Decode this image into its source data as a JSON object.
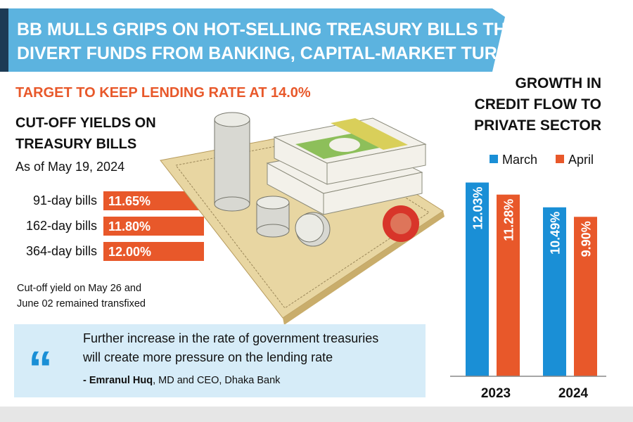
{
  "header": {
    "title_lines": [
      "BB MULLS GRIPS ON HOT-SELLING TREASURY BILLS THAT",
      "DIVERT FUNDS FROM BANKING, CAPITAL-MARKET TURFS"
    ]
  },
  "target": "TARGET TO KEEP LENDING RATE AT 14.0%",
  "yields": {
    "title_lines": [
      "CUT-OFF YIELDS ON",
      "TREASURY BILLS"
    ],
    "subtitle": "As of May 19, 2024",
    "rows": [
      [
        "91-day bills",
        "11.65%"
      ],
      [
        "162-day bills",
        "11.80%"
      ],
      [
        "364-day bills",
        "12.00%"
      ]
    ],
    "note_lines": [
      "Cut-off yield on May 26 and",
      "June 02 remained transfixed"
    ]
  },
  "quote": {
    "mark": "“",
    "lines": [
      "Further increase in the rate of government treasuries",
      "will create more pressure on the lending rate"
    ],
    "author": "- Emranul Huq",
    "role": ", MD and CEO, Dhaka Bank"
  },
  "chart_data": {
    "type": "bar",
    "title": [
      "GROWTH IN",
      "CREDIT FLOW TO",
      "PRIVATE SECTOR"
    ],
    "categories": [
      "2023",
      "2024"
    ],
    "series": [
      {
        "name": "March",
        "color": "#1a8fd6",
        "values": [
          12.03,
          10.49
        ],
        "value_labels": [
          "12.03%",
          "10.49%"
        ]
      },
      {
        "name": "April",
        "color": "#e8582a",
        "values": [
          11.28,
          9.9
        ],
        "value_labels": [
          "11.28%",
          "9.90%"
        ]
      }
    ]
  }
}
